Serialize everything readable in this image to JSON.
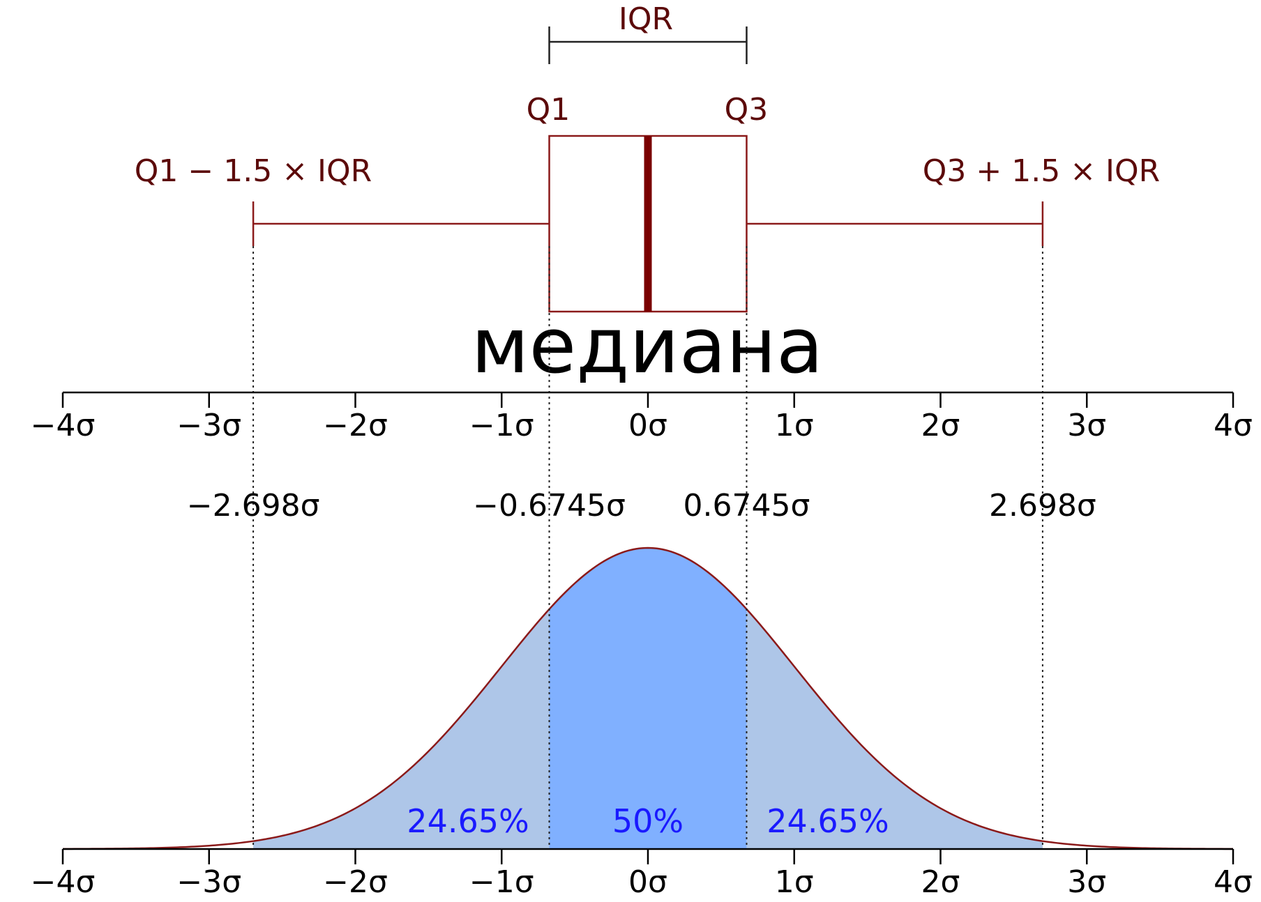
{
  "chart_data": {
    "type": "boxplot-with-normal-distribution",
    "xlim": [
      -4,
      4
    ],
    "x_unit": "σ",
    "tick_labels": [
      "−4σ",
      "−3σ",
      "−2σ",
      "−1σ",
      "0σ",
      "1σ",
      "2σ",
      "3σ",
      "4σ"
    ],
    "tick_values": [
      -4,
      -3,
      -2,
      -1,
      0,
      1,
      2,
      3,
      4
    ],
    "boxplot": {
      "q1": -0.6745,
      "median": 0,
      "q3": 0.6745,
      "whisker_low": -2.698,
      "whisker_high": 2.698,
      "labels": {
        "iqr": "IQR",
        "q1": "Q1",
        "q3": "Q3",
        "lower_whisker": "Q1 − 1.5 × IQR",
        "upper_whisker": "Q3 + 1.5 × IQR",
        "median": "медиана"
      }
    },
    "markers": [
      {
        "value": -2.698,
        "label": "−2.698σ"
      },
      {
        "value": -0.6745,
        "label": "−0.6745σ"
      },
      {
        "value": 0.6745,
        "label": "0.6745σ"
      },
      {
        "value": 2.698,
        "label": "2.698σ"
      }
    ],
    "distribution": {
      "type": "normal",
      "mean": 0,
      "sd": 1,
      "regions": [
        {
          "from": -2.698,
          "to": -0.6745,
          "label": "24.65%",
          "label_x": -1.23
        },
        {
          "from": -0.6745,
          "to": 0.6745,
          "label": "50%",
          "label_x": 0
        },
        {
          "from": 0.6745,
          "to": 2.698,
          "label": "24.65%",
          "label_x": 1.23
        }
      ]
    },
    "colors": {
      "box": "#8b1a1a",
      "text": "#5c0a0a",
      "median_line": "#7a0000",
      "curve": "#8b1a1a",
      "fill_outer": "#aec6e8",
      "fill_inner": "#80b0ff",
      "percent_text": "#1a1aff"
    }
  }
}
